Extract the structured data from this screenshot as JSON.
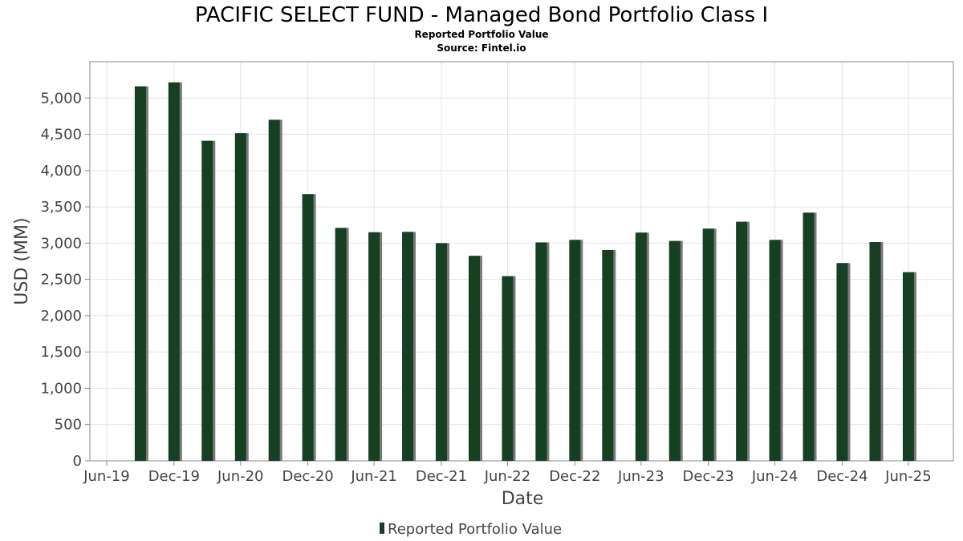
{
  "chart_data": {
    "type": "bar",
    "title": "PACIFIC SELECT FUND - Managed Bond Portfolio Class I",
    "subtitle": "Reported Portfolio Value",
    "source": "Source: Fintel.io",
    "xlabel": "Date",
    "ylabel": "USD (MM)",
    "ylim": [
      0,
      5500
    ],
    "yticks": [
      0,
      500,
      1000,
      1500,
      2000,
      2500,
      3000,
      3500,
      4000,
      4500,
      5000
    ],
    "ytick_labels": [
      "0",
      "500",
      "1,000",
      "1,500",
      "2,000",
      "2,500",
      "3,000",
      "3,500",
      "4,000",
      "4,500",
      "5,000"
    ],
    "xlim": [
      "2019-05-15",
      "2025-10-31"
    ],
    "xticks": [
      {
        "date": "2019-06-30",
        "label": "Jun-19"
      },
      {
        "date": "2019-12-31",
        "label": "Dec-19"
      },
      {
        "date": "2020-06-30",
        "label": "Jun-20"
      },
      {
        "date": "2020-12-31",
        "label": "Dec-20"
      },
      {
        "date": "2021-06-30",
        "label": "Jun-21"
      },
      {
        "date": "2021-12-31",
        "label": "Dec-21"
      },
      {
        "date": "2022-06-30",
        "label": "Jun-22"
      },
      {
        "date": "2022-12-31",
        "label": "Dec-22"
      },
      {
        "date": "2023-06-30",
        "label": "Jun-23"
      },
      {
        "date": "2023-12-31",
        "label": "Dec-23"
      },
      {
        "date": "2024-06-30",
        "label": "Jun-24"
      },
      {
        "date": "2024-12-31",
        "label": "Dec-24"
      },
      {
        "date": "2025-06-30",
        "label": "Jun-25"
      }
    ],
    "grid": true,
    "legend_position": "bottom-center",
    "series": [
      {
        "name": "Reported Portfolio Value",
        "color": "#173f21",
        "shadow_color": "#7a7a7a",
        "dates": [
          "2019-09-30",
          "2019-12-31",
          "2020-03-31",
          "2020-06-30",
          "2020-09-30",
          "2020-12-31",
          "2021-03-31",
          "2021-06-30",
          "2021-09-30",
          "2021-12-31",
          "2022-03-31",
          "2022-06-30",
          "2022-09-30",
          "2022-12-31",
          "2023-03-31",
          "2023-06-30",
          "2023-09-30",
          "2023-12-31",
          "2024-03-31",
          "2024-06-30",
          "2024-09-30",
          "2024-12-31",
          "2025-03-31",
          "2025-06-30"
        ],
        "values": [
          5160,
          5215,
          4410,
          4515,
          4700,
          3675,
          3210,
          3150,
          3155,
          3000,
          2825,
          2545,
          3010,
          3045,
          2905,
          3145,
          3030,
          3200,
          3295,
          3045,
          3420,
          2725,
          3015,
          2600
        ]
      }
    ]
  }
}
